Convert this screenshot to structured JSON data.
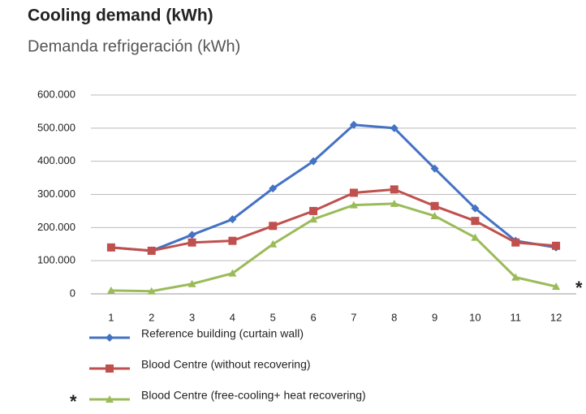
{
  "chart_data": {
    "type": "line",
    "title": "Cooling demand (kWh)",
    "subtitle": "Demanda refrigeración (kWh)",
    "categories": [
      "1",
      "2",
      "3",
      "4",
      "5",
      "6",
      "7",
      "8",
      "9",
      "10",
      "11",
      "12"
    ],
    "series": [
      {
        "name": "Reference building (curtain wall)",
        "color": "#4472c4",
        "marker": "diamond",
        "values": [
          140000,
          130000,
          178000,
          225000,
          318000,
          400000,
          510000,
          500000,
          378000,
          258000,
          160000,
          140000
        ]
      },
      {
        "name": "Blood Centre (without recovering)",
        "color": "#c0504d",
        "marker": "square",
        "values": [
          140000,
          130000,
          155000,
          160000,
          205000,
          250000,
          305000,
          315000,
          265000,
          220000,
          155000,
          145000
        ]
      },
      {
        "name": "Blood Centre (free-cooling+ heat recovering)",
        "color": "#9bbb59",
        "marker": "triangle",
        "values": [
          10000,
          8000,
          30000,
          62000,
          150000,
          225000,
          268000,
          272000,
          235000,
          170000,
          50000,
          22000
        ]
      }
    ],
    "ylim": [
      0,
      600000
    ],
    "yticks": [
      0,
      {
        "value": 100000,
        "label": "100.000"
      },
      {
        "value": 200000,
        "label": "200.000"
      },
      {
        "value": 300000,
        "label": "300.000"
      },
      {
        "value": 400000,
        "label": "400.000"
      },
      {
        "value": 500000,
        "label": "500.000"
      },
      {
        "value": 600000,
        "label": "600.000"
      }
    ],
    "grid": true,
    "annotations": [
      "*",
      "*"
    ]
  }
}
